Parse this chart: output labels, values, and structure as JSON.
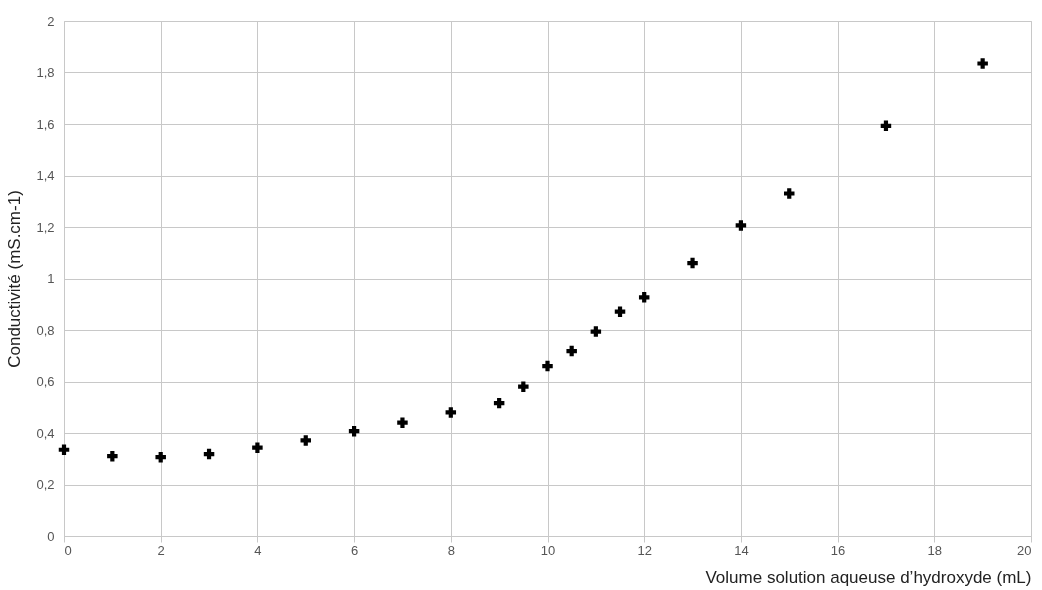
{
  "chart_data": {
    "type": "scatter",
    "xlabel": "Volume solution aqueuse d’hydroxyde (mL)",
    "ylabel": "Conductivité (mS.cm-1)",
    "x": [
      0,
      1,
      2,
      3,
      4,
      5,
      6,
      7,
      8,
      9,
      9.5,
      10,
      10.5,
      11,
      11.5,
      12,
      13,
      14,
      15,
      17,
      19
    ],
    "series": [
      {
        "color": "#000000",
        "values": [
          0.335,
          0.31,
          0.306,
          0.318,
          0.343,
          0.371,
          0.407,
          0.44,
          0.48,
          0.516,
          0.58,
          0.66,
          0.718,
          0.794,
          0.871,
          0.927,
          1.06,
          1.206,
          1.33,
          1.593,
          1.835
        ]
      }
    ],
    "xlim": [
      0,
      20
    ],
    "xticks": [
      0,
      2,
      4,
      6,
      8,
      10,
      12,
      14,
      16,
      18,
      20
    ],
    "ylim": [
      0,
      2
    ],
    "yticks": [
      0,
      {
        "value": 0.2,
        "label": "0,2"
      },
      {
        "value": 0.4,
        "label": "0,4"
      },
      {
        "value": 0.6,
        "label": "0,6"
      },
      {
        "value": 0.8,
        "label": "0,8"
      },
      1,
      {
        "value": 1.2,
        "label": "1,2"
      },
      {
        "value": 1.4,
        "label": "1,4"
      },
      {
        "value": 1.6,
        "label": "1,6"
      },
      {
        "value": 1.8,
        "label": "1,8"
      },
      2
    ],
    "grid": true,
    "marker": "cross"
  }
}
